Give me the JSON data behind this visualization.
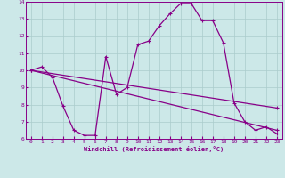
{
  "xlabel": "Windchill (Refroidissement éolien,°C)",
  "background_color": "#cce8e8",
  "line_color": "#880088",
  "grid_color": "#aacccc",
  "xlim": [
    -0.5,
    23.5
  ],
  "ylim": [
    6,
    14
  ],
  "yticks": [
    6,
    7,
    8,
    9,
    10,
    11,
    12,
    13,
    14
  ],
  "xticks": [
    0,
    1,
    2,
    3,
    4,
    5,
    6,
    7,
    8,
    9,
    10,
    11,
    12,
    13,
    14,
    15,
    16,
    17,
    18,
    19,
    20,
    21,
    22,
    23
  ],
  "series1_x": [
    0,
    1,
    2,
    3,
    4,
    5,
    6,
    7,
    8,
    9,
    10,
    11,
    12,
    13,
    14,
    15,
    16,
    17,
    18,
    19,
    20,
    21,
    22,
    23
  ],
  "series1_y": [
    10.0,
    10.2,
    9.6,
    7.9,
    6.5,
    6.2,
    6.2,
    10.8,
    8.6,
    9.0,
    11.5,
    11.7,
    12.6,
    13.3,
    13.9,
    13.9,
    12.9,
    12.9,
    11.6,
    8.1,
    7.0,
    6.5,
    6.7,
    6.3
  ],
  "series2_x": [
    0,
    23
  ],
  "series2_y": [
    10.0,
    7.8
  ],
  "series3_x": [
    0,
    23
  ],
  "series3_y": [
    10.0,
    6.5
  ],
  "marker": "+",
  "markersize": 3.5,
  "linewidth": 0.9
}
